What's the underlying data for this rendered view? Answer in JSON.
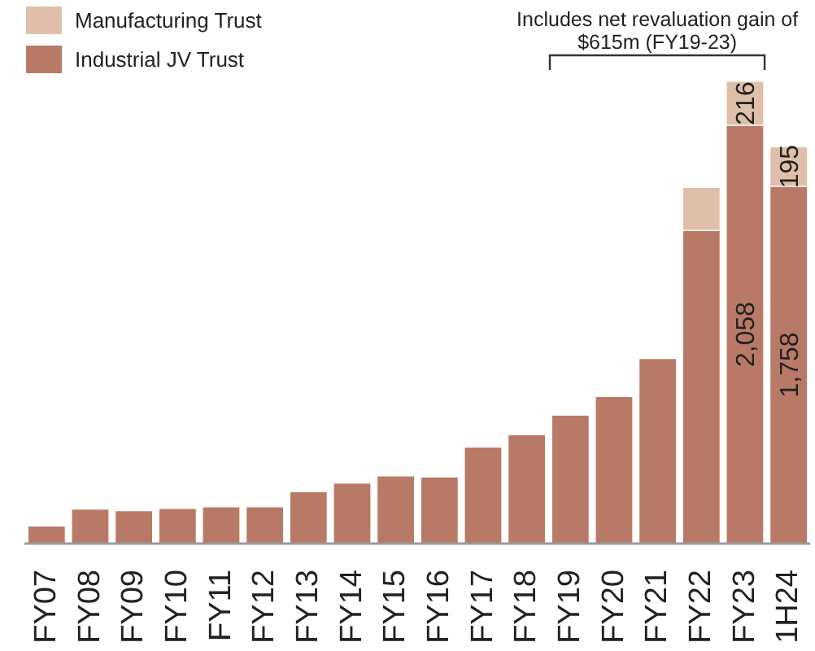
{
  "chart_data": {
    "type": "bar",
    "stacked": true,
    "legend": "top left",
    "annotations": [
      "Includes net revaluation gain of $615m (FY19-23)"
    ],
    "categories": [
      "FY07",
      "FY08",
      "FY09",
      "FY10",
      "FY11",
      "FY12",
      "FY13",
      "FY14",
      "FY15",
      "FY16",
      "FY17",
      "FY18",
      "FY19",
      "FY20",
      "FY21",
      "FY22",
      "FY23",
      "1H24"
    ],
    "series": [
      {
        "name": "Industrial JV Trust",
        "color": "#b87a66",
        "values": [
          86,
          170,
          162,
          173,
          181,
          181,
          256,
          298,
          333,
          328,
          475,
          536,
          632,
          723,
          910,
          1541,
          2058,
          1758
        ],
        "value_labels": [
          null,
          null,
          null,
          null,
          null,
          null,
          null,
          null,
          null,
          null,
          null,
          null,
          null,
          null,
          null,
          null,
          "2,058",
          "1,758"
        ]
      },
      {
        "name": "Manufacturing Trust",
        "color": "#dfbfa9",
        "values": [
          null,
          null,
          null,
          null,
          null,
          null,
          null,
          null,
          null,
          null,
          null,
          null,
          null,
          null,
          null,
          211,
          216,
          195
        ],
        "value_labels": [
          null,
          null,
          null,
          null,
          null,
          null,
          null,
          null,
          null,
          null,
          null,
          null,
          null,
          null,
          null,
          null,
          "216",
          "195"
        ]
      }
    ]
  }
}
